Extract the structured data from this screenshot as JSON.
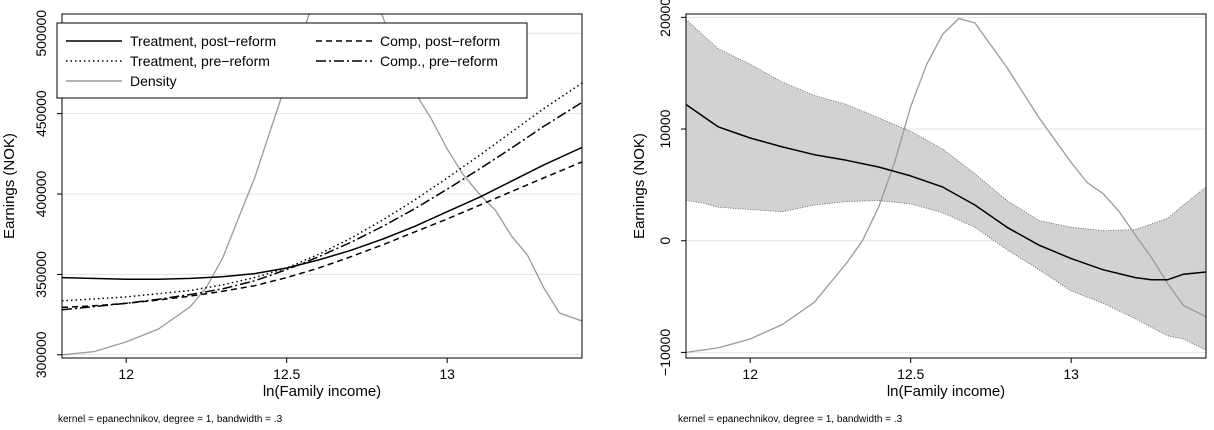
{
  "chart_data": [
    {
      "type": "line",
      "xlabel": "ln(Family income)",
      "ylabel": "Earnings (NOK)",
      "note": "kernel = epanechnikov, degree = 1, bandwidth = .3",
      "xlim": [
        11.8,
        13.42
      ],
      "ylim": [
        298000,
        512000
      ],
      "xticks": [
        12,
        12.5,
        13
      ],
      "xtick_labels": [
        "12",
        "12.5",
        "13"
      ],
      "yticks": [
        300000,
        350000,
        400000,
        450000,
        500000
      ],
      "ytick_labels": [
        "300000",
        "350000",
        "400000",
        "450000",
        "500000"
      ],
      "grid": true,
      "legend_position": "top-left",
      "series": [
        {
          "name": "Treatment, post−reform",
          "style": "solid",
          "color": "#000000",
          "x": [
            11.8,
            12.0,
            12.1,
            12.2,
            12.3,
            12.4,
            12.5,
            12.6,
            12.7,
            12.8,
            12.9,
            13.0,
            13.1,
            13.2,
            13.3,
            13.42
          ],
          "y": [
            348000,
            347000,
            347000,
            347500,
            348500,
            350500,
            354000,
            359000,
            365000,
            372000,
            380000,
            389000,
            398000,
            408000,
            418000,
            429000
          ]
        },
        {
          "name": "Treatment, pre−reform",
          "style": "dotted",
          "color": "#000000",
          "x": [
            11.8,
            12.0,
            12.2,
            12.3,
            12.4,
            12.5,
            12.6,
            12.7,
            12.8,
            12.9,
            13.0,
            13.1,
            13.2,
            13.3,
            13.42
          ],
          "y": [
            333500,
            336000,
            340000,
            343500,
            348000,
            354000,
            362500,
            372500,
            384000,
            396500,
            410000,
            424000,
            438500,
            453000,
            469000
          ]
        },
        {
          "name": "Comp, post−reform",
          "style": "dashed",
          "color": "#000000",
          "x": [
            11.8,
            11.9,
            12.0,
            12.1,
            12.2,
            12.3,
            12.4,
            12.5,
            12.6,
            12.7,
            12.8,
            12.9,
            13.0,
            13.1,
            13.2,
            13.3,
            13.42
          ],
          "y": [
            329500,
            330500,
            332000,
            334000,
            336500,
            339500,
            343000,
            348000,
            354000,
            361000,
            368500,
            376500,
            384500,
            393000,
            401500,
            410000,
            420000
          ]
        },
        {
          "name": "Comp., pre−reform",
          "style": "dashdot",
          "color": "#000000",
          "x": [
            11.8,
            11.9,
            12.0,
            12.1,
            12.2,
            12.3,
            12.4,
            12.5,
            12.6,
            12.7,
            12.8,
            12.9,
            13.0,
            13.1,
            13.2,
            13.3,
            13.42
          ],
          "y": [
            328000,
            330000,
            332000,
            334500,
            337500,
            341000,
            346000,
            353000,
            361000,
            370000,
            380000,
            391000,
            403000,
            415500,
            428500,
            442000,
            457000
          ]
        },
        {
          "name": "Density",
          "style": "solid",
          "color": "#9a9a9a",
          "clip": true,
          "x": [
            11.8,
            11.9,
            12.0,
            12.1,
            12.2,
            12.25,
            12.3,
            12.35,
            12.4,
            12.45,
            12.5,
            12.52,
            12.55,
            12.6,
            12.7,
            12.8,
            12.85,
            12.9,
            12.95,
            13.0,
            13.05,
            13.1,
            13.15,
            13.2,
            13.25,
            13.3,
            13.35,
            13.42
          ],
          "y": [
            300000,
            302000,
            308000,
            316000,
            330000,
            342000,
            360000,
            385000,
            410000,
            440000,
            470000,
            485000,
            500000,
            530000,
            550000,
            510000,
            480000,
            463000,
            447000,
            428000,
            412000,
            400000,
            390000,
            374000,
            362000,
            342000,
            326000,
            321000
          ]
        }
      ]
    },
    {
      "type": "area",
      "xlabel": "ln(Family income)",
      "ylabel": "Earnings (NOK)",
      "note": "kernel = epanechnikov, degree = 1, bandwidth = .3",
      "xlim": [
        11.8,
        13.42
      ],
      "ylim": [
        -10500,
        20300
      ],
      "xticks": [
        12,
        12.5,
        13
      ],
      "xtick_labels": [
        "12",
        "12.5",
        "13"
      ],
      "yticks": [
        -10000,
        0,
        10000,
        20000
      ],
      "ytick_labels": [
        "−10000",
        "0",
        "10000",
        "20000"
      ],
      "grid": true,
      "band": {
        "x": [
          11.8,
          11.85,
          11.9,
          12.0,
          12.1,
          12.2,
          12.3,
          12.4,
          12.5,
          12.6,
          12.7,
          12.8,
          12.9,
          13.0,
          13.1,
          13.2,
          13.3,
          13.35,
          13.42
        ],
        "upper": [
          19800,
          18500,
          17200,
          15800,
          14200,
          13000,
          12200,
          11000,
          9800,
          8200,
          6000,
          3600,
          1800,
          1200,
          900,
          1000,
          2000,
          3200,
          4800
        ],
        "lower": [
          3600,
          3400,
          3000,
          2800,
          2600,
          3200,
          3500,
          3600,
          3300,
          2500,
          1200,
          -800,
          -2600,
          -4500,
          -5600,
          -7000,
          -8500,
          -8800,
          -9800
        ]
      },
      "series": [
        {
          "name": "",
          "style": "solid",
          "color": "#000000",
          "x": [
            11.8,
            11.85,
            11.9,
            12.0,
            12.1,
            12.2,
            12.3,
            12.4,
            12.5,
            12.6,
            12.7,
            12.8,
            12.9,
            13.0,
            13.1,
            13.2,
            13.25,
            13.3,
            13.35,
            13.42
          ],
          "y": [
            12200,
            11200,
            10200,
            9200,
            8400,
            7700,
            7200,
            6600,
            5800,
            4800,
            3200,
            1200,
            -400,
            -1600,
            -2600,
            -3300,
            -3500,
            -3500,
            -3000,
            -2800
          ]
        },
        {
          "name": "",
          "style": "solid",
          "color": "#9a9a9a",
          "x": [
            11.8,
            11.9,
            12.0,
            12.1,
            12.2,
            12.3,
            12.35,
            12.4,
            12.45,
            12.5,
            12.55,
            12.6,
            12.65,
            12.7,
            12.8,
            12.9,
            13.0,
            13.05,
            13.1,
            13.15,
            13.2,
            13.25,
            13.3,
            13.35,
            13.42
          ],
          "y": [
            -10000,
            -9600,
            -8800,
            -7500,
            -5500,
            -2000,
            0,
            3000,
            7000,
            12000,
            15800,
            18500,
            19900,
            19500,
            15500,
            11000,
            7000,
            5200,
            4200,
            2600,
            500,
            -1500,
            -3800,
            -5800,
            -6800
          ]
        }
      ]
    }
  ]
}
